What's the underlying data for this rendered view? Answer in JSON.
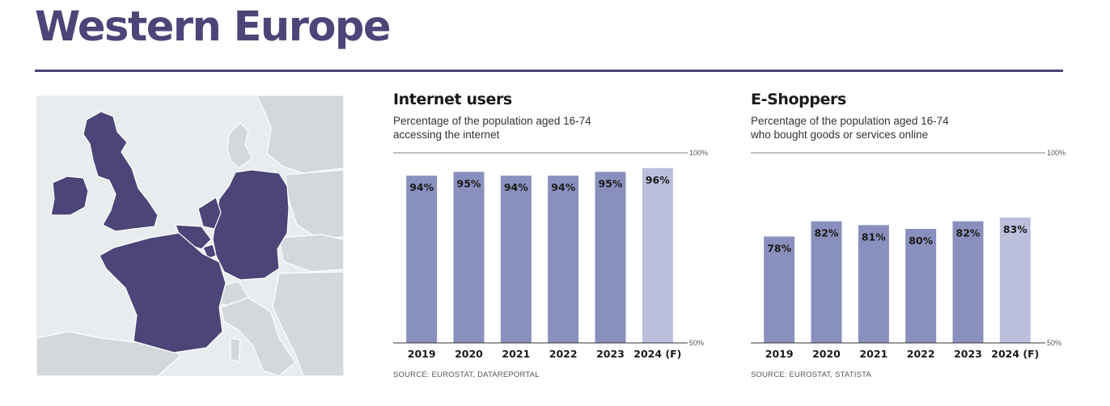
{
  "page": {
    "title": "Western Europe"
  },
  "colors": {
    "accent": "#4b4578",
    "bar": "#8a90bd",
    "bar_forecast": "#bbbfdc",
    "map_highlight": "#4b4578",
    "map_other": "#d3d8dd",
    "map_sea": "#e8ecef"
  },
  "map": {
    "highlighted_countries": [
      "United Kingdom",
      "Ireland",
      "France",
      "Belgium",
      "Netherlands",
      "Luxembourg",
      "Germany"
    ]
  },
  "charts": [
    {
      "title": "Internet users",
      "subtitle_lines": [
        "Percentage of the population aged 16-74",
        "accessing the internet"
      ],
      "source": "SOURCE: EUROSTAT, DATAREPORTAL"
    },
    {
      "title": "E-Shoppers",
      "subtitle_lines": [
        "Percentage of the population aged 16-74",
        "who bought goods or services online"
      ],
      "source": "SOURCE: EUROSTAT, STATISTA"
    }
  ],
  "chart_data": [
    {
      "type": "bar",
      "title": "Internet users",
      "categories": [
        "2019",
        "2020",
        "2021",
        "2022",
        "2023",
        "2024 (F)"
      ],
      "values": [
        94,
        95,
        94,
        94,
        95,
        96
      ],
      "value_labels": [
        "94%",
        "95%",
        "94%",
        "94%",
        "95%",
        "96%"
      ],
      "forecast": [
        false,
        false,
        false,
        false,
        false,
        true
      ],
      "ylim": [
        50,
        100
      ],
      "ytick_labels": [
        "100%",
        "50%"
      ],
      "grid": false
    },
    {
      "type": "bar",
      "title": "E-Shoppers",
      "categories": [
        "2019",
        "2020",
        "2021",
        "2022",
        "2023",
        "2024 (F)"
      ],
      "values": [
        78,
        82,
        81,
        80,
        82,
        83
      ],
      "value_labels": [
        "78%",
        "82%",
        "81%",
        "80%",
        "82%",
        "83%"
      ],
      "forecast": [
        false,
        false,
        false,
        false,
        false,
        true
      ],
      "ylim": [
        50,
        100
      ],
      "ytick_labels": [
        "100%",
        "50%"
      ],
      "grid": false
    }
  ]
}
